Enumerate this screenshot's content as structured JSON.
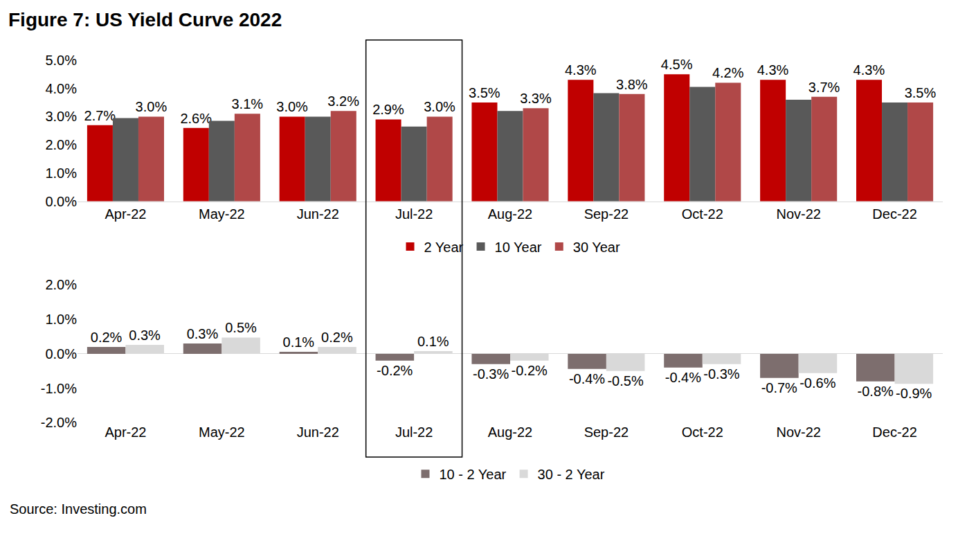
{
  "chart_data": [
    {
      "type": "bar",
      "title": "Figure 7: US Yield Curve 2022",
      "source": "Source: Investing.com",
      "categories": [
        "Apr-22",
        "May-22",
        "Jun-22",
        "Jul-22",
        "Aug-22",
        "Sep-22",
        "Oct-22",
        "Nov-22",
        "Dec-22"
      ],
      "series": [
        {
          "name": "2 Year",
          "color": "#c00000",
          "data_labels": true,
          "values": [
            2.7,
            2.6,
            3.0,
            2.9,
            3.5,
            4.3,
            4.5,
            4.3,
            4.3
          ],
          "value_labels": [
            "2.7%",
            "2.6%",
            "3.0%",
            "2.9%",
            "3.5%",
            "4.3%",
            "4.5%",
            "4.3%",
            "4.3%"
          ]
        },
        {
          "name": "10 Year",
          "color": "#595959",
          "data_labels": false,
          "values": [
            2.95,
            2.85,
            3.0,
            2.65,
            3.2,
            3.83,
            4.05,
            3.6,
            3.5
          ]
        },
        {
          "name": "30 Year",
          "color": "#b04848",
          "data_labels": true,
          "values": [
            3.0,
            3.1,
            3.2,
            3.0,
            3.3,
            3.8,
            4.2,
            3.7,
            3.5
          ],
          "value_labels": [
            "3.0%",
            "3.1%",
            "3.2%",
            "3.0%",
            "3.3%",
            "3.8%",
            "4.2%",
            "3.7%",
            "3.5%"
          ]
        }
      ],
      "ylim": [
        0,
        5
      ],
      "yticks": [
        {
          "value": 0,
          "label": "0.0%"
        },
        {
          "value": 1,
          "label": "1.0%"
        },
        {
          "value": 2,
          "label": "2.0%"
        },
        {
          "value": 3,
          "label": "3.0%"
        },
        {
          "value": 4,
          "label": "4.0%"
        },
        {
          "value": 5,
          "label": "5.0%"
        }
      ],
      "grid": false,
      "legend": "bottom"
    },
    {
      "type": "bar",
      "categories": [
        "Apr-22",
        "May-22",
        "Jun-22",
        "Jul-22",
        "Aug-22",
        "Sep-22",
        "Oct-22",
        "Nov-22",
        "Dec-22"
      ],
      "series": [
        {
          "name": "10 - 2 Year",
          "color": "#7d6e6e",
          "data_labels": true,
          "values": [
            0.2,
            0.3,
            0.06,
            -0.2,
            -0.3,
            -0.44,
            -0.4,
            -0.7,
            -0.8
          ],
          "value_labels": [
            "0.2%",
            "0.3%",
            "0.1%",
            "-0.2%",
            "-0.3%",
            "-0.4%",
            "-0.4%",
            "-0.7%",
            "-0.8%"
          ]
        },
        {
          "name": "30 - 2 Year",
          "color": "#d9d9d9",
          "data_labels": true,
          "values": [
            0.26,
            0.47,
            0.2,
            0.08,
            -0.2,
            -0.5,
            -0.3,
            -0.56,
            -0.87
          ],
          "value_labels": [
            "0.3%",
            "0.5%",
            "0.2%",
            "0.1%",
            "-0.2%",
            "-0.5%",
            "-0.3%",
            "-0.6%",
            "-0.9%"
          ]
        }
      ],
      "ylim": [
        -2,
        2
      ],
      "yticks": [
        {
          "value": -2,
          "label": "-2.0%"
        },
        {
          "value": -1,
          "label": "-1.0%"
        },
        {
          "value": 0,
          "label": "0.0%"
        },
        {
          "value": 1,
          "label": "1.0%"
        },
        {
          "value": 2,
          "label": "2.0%"
        }
      ],
      "grid": false,
      "legend": "bottom"
    }
  ]
}
